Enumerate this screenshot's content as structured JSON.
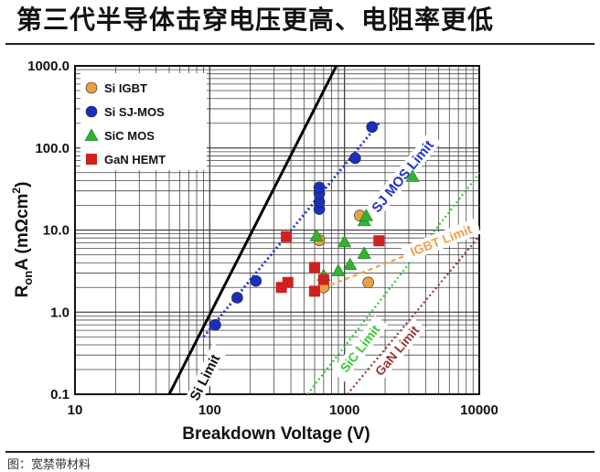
{
  "headline": "第三代半导体击穿电压更高、电阻率更低",
  "caption": "图：宽禁带材料",
  "chart_data": {
    "type": "scatter",
    "x_scale": "log",
    "y_scale": "log",
    "xlim": [
      10,
      10000
    ],
    "ylim": [
      0.1,
      1000
    ],
    "x_ticks": [
      "10",
      "100",
      "1000",
      "10000"
    ],
    "y_ticks": [
      "0.1",
      "1.0",
      "10.0",
      "100.0",
      "1000.0"
    ],
    "xlabel": "Breakdown Voltage (V)",
    "ylabel_main": "R",
    "ylabel_sub": "on",
    "ylabel_rest": "A (mΩcm",
    "ylabel_sup": "2",
    "ylabel_end": ")",
    "grid": true,
    "legend_position": "top-left",
    "series": [
      {
        "name": "Si  IGBT",
        "marker": "circle",
        "color": "#e8a040",
        "points": [
          [
            650,
            7.5
          ],
          [
            1300,
            15
          ],
          [
            700,
            2.0
          ],
          [
            1500,
            2.3
          ]
        ]
      },
      {
        "name": "Si  SJ-MOS",
        "marker": "circle",
        "color": "#1a2fc0",
        "points": [
          [
            110,
            0.7
          ],
          [
            160,
            1.5
          ],
          [
            220,
            2.4
          ],
          [
            650,
            18
          ],
          [
            650,
            22
          ],
          [
            650,
            28
          ],
          [
            650,
            33
          ],
          [
            1200,
            75
          ],
          [
            1600,
            180
          ]
        ]
      },
      {
        "name": "SiC  MOS",
        "marker": "triangle",
        "color": "#33b233",
        "points": [
          [
            620,
            8.5
          ],
          [
            700,
            2.8
          ],
          [
            900,
            3.2
          ],
          [
            1000,
            7.2
          ],
          [
            1100,
            3.8
          ],
          [
            1400,
            5.2
          ],
          [
            1400,
            13
          ],
          [
            1450,
            15
          ],
          [
            3200,
            45
          ]
        ]
      },
      {
        "name": "GaN  HEMT",
        "marker": "square",
        "color": "#d02020",
        "points": [
          [
            370,
            8.3
          ],
          [
            340,
            2.0
          ],
          [
            380,
            2.3
          ],
          [
            600,
            3.5
          ],
          [
            600,
            1.8
          ],
          [
            700,
            2.5
          ],
          [
            1800,
            7.4
          ]
        ]
      }
    ],
    "limit_lines": [
      {
        "label": "Si Limit",
        "color": "#000000",
        "style": "solid",
        "points": [
          [
            50,
            0.1
          ],
          [
            870,
            1000
          ]
        ]
      },
      {
        "label": "SJ MOS Limit",
        "color": "#2233cc",
        "style": "dotted",
        "points": [
          [
            90,
            0.5
          ],
          [
            1800,
            200
          ]
        ]
      },
      {
        "label": "IGBT Limit",
        "color": "#f0a050",
        "style": "dashed",
        "points": [
          [
            600,
            1.8
          ],
          [
            10000,
            11
          ]
        ]
      },
      {
        "label": "SiC Limit",
        "color": "#33cc33",
        "style": "dotted",
        "points": [
          [
            530,
            0.1
          ],
          [
            11000,
            60
          ]
        ]
      },
      {
        "label": "GaN Limit",
        "color": "#993333",
        "style": "dotted",
        "points": [
          [
            1050,
            0.1
          ],
          [
            12000,
            12
          ]
        ]
      }
    ]
  }
}
